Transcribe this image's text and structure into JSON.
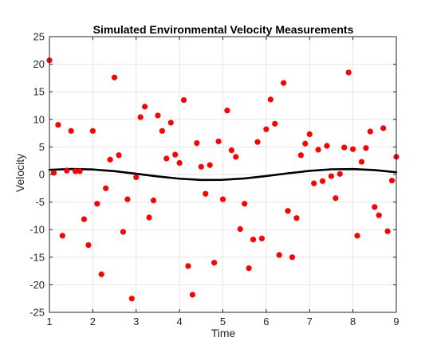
{
  "chart_data": {
    "type": "scatter",
    "title": "Simulated Environmental Velocity Measurements",
    "xlabel": "Time",
    "ylabel": "Velocity",
    "xlim": [
      1,
      9
    ],
    "ylim": [
      -25,
      25
    ],
    "xticks": [
      1,
      2,
      3,
      4,
      5,
      6,
      7,
      8,
      9
    ],
    "yticks": [
      -25,
      -20,
      -15,
      -10,
      -5,
      0,
      5,
      10,
      15,
      20,
      25
    ],
    "grid": true,
    "box": true,
    "colors": {
      "points": "#ff0000",
      "trend": "#000000",
      "grid": "#e6e6e6",
      "axes": "#262626"
    },
    "series": [
      {
        "type": "scatter",
        "points": [
          [
            1.0,
            20.7
          ],
          [
            1.1,
            0.3
          ],
          [
            1.2,
            9.0
          ],
          [
            1.3,
            -11.1
          ],
          [
            1.4,
            0.7
          ],
          [
            1.5,
            7.9
          ],
          [
            1.6,
            0.6
          ],
          [
            1.7,
            0.6
          ],
          [
            1.8,
            -8.1
          ],
          [
            1.9,
            -12.8
          ],
          [
            2.0,
            7.9
          ],
          [
            2.1,
            -5.3
          ],
          [
            2.2,
            -18.1
          ],
          [
            2.3,
            -2.5
          ],
          [
            2.4,
            2.7
          ],
          [
            2.5,
            17.6
          ],
          [
            2.6,
            3.5
          ],
          [
            2.7,
            -10.4
          ],
          [
            2.8,
            -4.5
          ],
          [
            2.9,
            -22.5
          ],
          [
            3.0,
            -0.5
          ],
          [
            3.1,
            10.4
          ],
          [
            3.2,
            12.3
          ],
          [
            3.3,
            -7.8
          ],
          [
            3.4,
            -4.7
          ],
          [
            3.5,
            10.7
          ],
          [
            3.6,
            7.9
          ],
          [
            3.7,
            2.9
          ],
          [
            3.8,
            9.4
          ],
          [
            3.9,
            3.6
          ],
          [
            4.0,
            2.1
          ],
          [
            4.1,
            13.5
          ],
          [
            4.2,
            -16.6
          ],
          [
            4.3,
            -21.8
          ],
          [
            4.4,
            5.7
          ],
          [
            4.5,
            1.4
          ],
          [
            4.6,
            -3.5
          ],
          [
            4.7,
            1.7
          ],
          [
            4.8,
            -16.0
          ],
          [
            4.9,
            6.0
          ],
          [
            5.0,
            -4.5
          ],
          [
            5.1,
            11.6
          ],
          [
            5.2,
            4.4
          ],
          [
            5.3,
            3.2
          ],
          [
            5.4,
            -9.9
          ],
          [
            5.5,
            -5.3
          ],
          [
            5.6,
            -17.0
          ],
          [
            5.7,
            -11.8
          ],
          [
            5.8,
            5.9
          ],
          [
            5.9,
            -11.6
          ],
          [
            6.0,
            8.2
          ],
          [
            6.1,
            13.6
          ],
          [
            6.2,
            9.2
          ],
          [
            6.3,
            -14.6
          ],
          [
            6.4,
            16.6
          ],
          [
            6.5,
            -6.6
          ],
          [
            6.6,
            -15.0
          ],
          [
            6.7,
            -7.9
          ],
          [
            6.8,
            3.5
          ],
          [
            6.9,
            5.6
          ],
          [
            7.0,
            7.3
          ],
          [
            7.1,
            -1.6
          ],
          [
            7.2,
            4.5
          ],
          [
            7.3,
            -1.2
          ],
          [
            7.4,
            5.2
          ],
          [
            7.5,
            -0.3
          ],
          [
            7.6,
            -4.3
          ],
          [
            7.7,
            0.1
          ],
          [
            7.8,
            4.9
          ],
          [
            7.9,
            18.5
          ],
          [
            8.0,
            4.6
          ],
          [
            8.1,
            -11.1
          ],
          [
            8.2,
            2.3
          ],
          [
            8.3,
            4.8
          ],
          [
            8.4,
            7.8
          ],
          [
            8.5,
            -5.9
          ],
          [
            8.6,
            -7.4
          ],
          [
            8.7,
            8.4
          ],
          [
            8.8,
            -10.3
          ],
          [
            8.9,
            -1.1
          ],
          [
            9.0,
            3.2
          ]
        ]
      },
      {
        "type": "line",
        "x": [
          1.0,
          1.5,
          2.0,
          2.5,
          3.0,
          3.5,
          4.0,
          4.5,
          5.0,
          5.5,
          6.0,
          6.5,
          7.0,
          7.5,
          8.0,
          8.5,
          9.0
        ],
        "y": [
          0.84,
          1.0,
          0.91,
          0.6,
          0.14,
          -0.35,
          -0.76,
          -0.98,
          -0.96,
          -0.71,
          -0.28,
          0.22,
          0.66,
          0.94,
          0.99,
          0.8,
          0.41
        ]
      }
    ]
  }
}
